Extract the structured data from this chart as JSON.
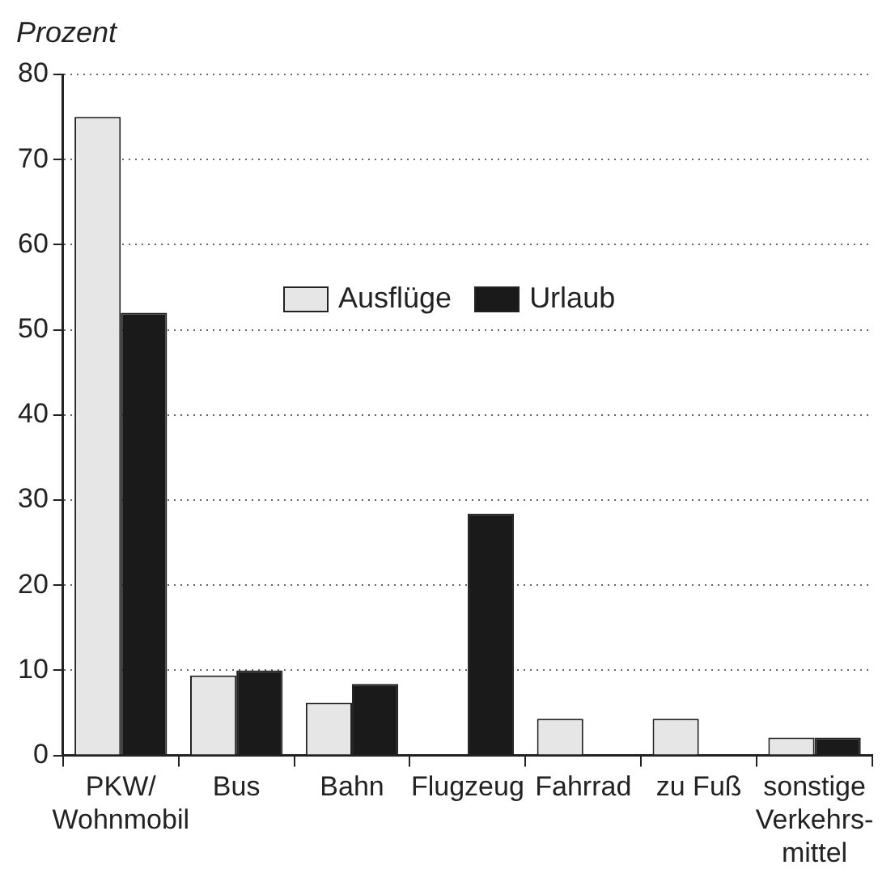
{
  "chart_data": {
    "type": "bar",
    "ylabel": "Prozent",
    "categories": [
      "PKW/\nWohnmobil",
      "Bus",
      "Bahn",
      "Flugzeug",
      "Fahrrad",
      "zu Fuß",
      "sonstige\nVerkehrs-\nmittel"
    ],
    "series": [
      {
        "name": "Ausflüge",
        "color": "#e6e6e6",
        "values": [
          75,
          9.4,
          6.2,
          0,
          4.3,
          4.3,
          2.1
        ]
      },
      {
        "name": "Urlaub",
        "color": "#1a1a1a",
        "values": [
          52,
          10,
          8.4,
          28.4,
          0,
          0,
          2.1
        ]
      }
    ],
    "ylim": [
      0,
      80
    ],
    "yticks": [
      0,
      10,
      20,
      30,
      40,
      50,
      60,
      70,
      80
    ],
    "grid": "y",
    "legend": "center"
  }
}
